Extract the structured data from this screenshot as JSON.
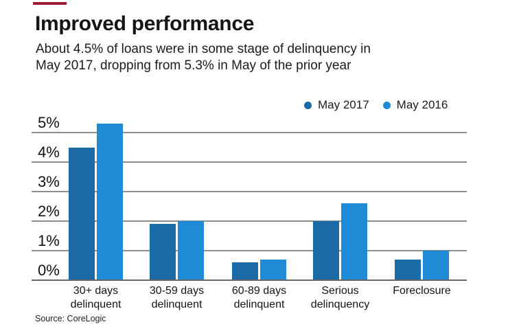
{
  "accent_color": "#9a1c2e",
  "source": "Source: CoreLogic",
  "chart_data": {
    "type": "bar",
    "title": "Improved performance",
    "subtitle_lines": [
      "About 4.5% of loans were in some stage of delinquency in",
      "May 2017, dropping from 5.3% in May of the prior year"
    ],
    "categories": [
      "30+ days delinquent",
      "30-59 days delinquent",
      "60-89 days delinquent",
      "Serious delinquency",
      "Foreclosure"
    ],
    "category_lines": [
      [
        "30+ days",
        "delinquent"
      ],
      [
        "30-59 days",
        "delinquent"
      ],
      [
        "60-89 days",
        "delinquent"
      ],
      [
        "Serious",
        "delinquency"
      ],
      [
        "Foreclosure"
      ]
    ],
    "series": [
      {
        "name": "May 2017",
        "color": "#1c6aa5",
        "values": [
          4.5,
          1.9,
          0.6,
          2.0,
          0.7
        ]
      },
      {
        "name": "May 2016",
        "color": "#1f8ad6",
        "values": [
          5.3,
          2.0,
          0.7,
          2.6,
          1.0
        ]
      }
    ],
    "y_tick_labels": [
      "5%",
      "4%",
      "3%",
      "2%",
      "1%",
      "0%"
    ],
    "ylim": [
      0,
      5
    ],
    "xlabel": "",
    "ylabel": "",
    "grid": true,
    "legend_position": "top-right"
  }
}
